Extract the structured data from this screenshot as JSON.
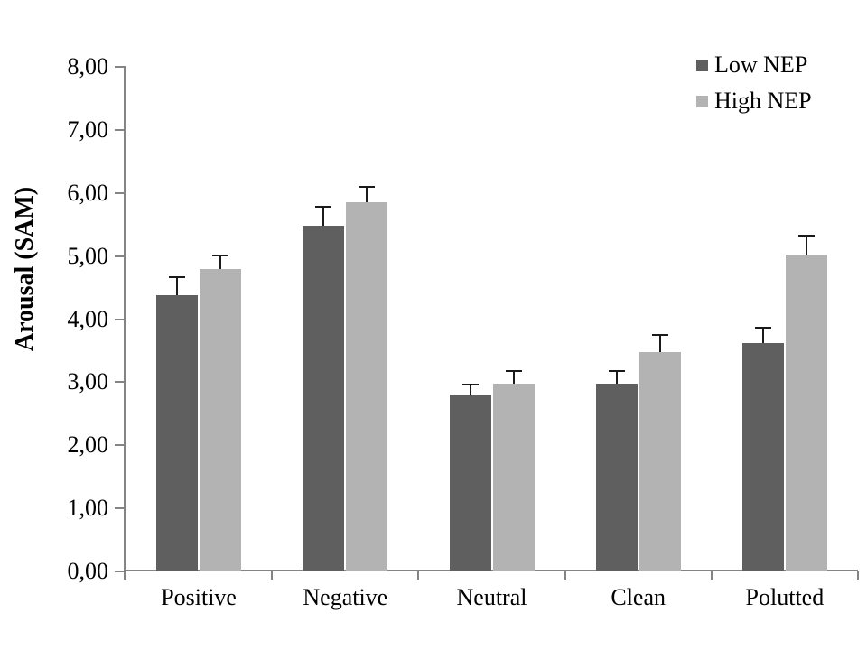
{
  "chart_data": {
    "type": "bar",
    "title": "",
    "ylabel": "Arousal (SAM)",
    "xlabel": "",
    "categories": [
      "Positive",
      "Negative",
      "Neutral",
      "Clean",
      "Polutted"
    ],
    "series": [
      {
        "name": "Low NEP",
        "color": "#5f5f5f",
        "values": [
          4.38,
          5.48,
          2.8,
          2.97,
          3.62
        ],
        "errors_upper": [
          0.28,
          0.3,
          0.16,
          0.2,
          0.24
        ]
      },
      {
        "name": "High NEP",
        "color": "#b3b3b3",
        "values": [
          4.8,
          5.85,
          2.98,
          3.48,
          5.03
        ],
        "errors_upper": [
          0.21,
          0.25,
          0.19,
          0.27,
          0.3
        ]
      }
    ],
    "ylim": [
      0,
      8
    ],
    "ytick_step": 1,
    "ytick_labels": [
      "0,00",
      "1,00",
      "2,00",
      "3,00",
      "4,00",
      "5,00",
      "6,00",
      "7,00",
      "8,00"
    ],
    "decimal_separator": ",",
    "grid": false,
    "error_bars": "upper-only",
    "legend_position": "top-right",
    "axis_color": "#848484",
    "text_color": "#000000",
    "background_color": "#ffffff"
  }
}
